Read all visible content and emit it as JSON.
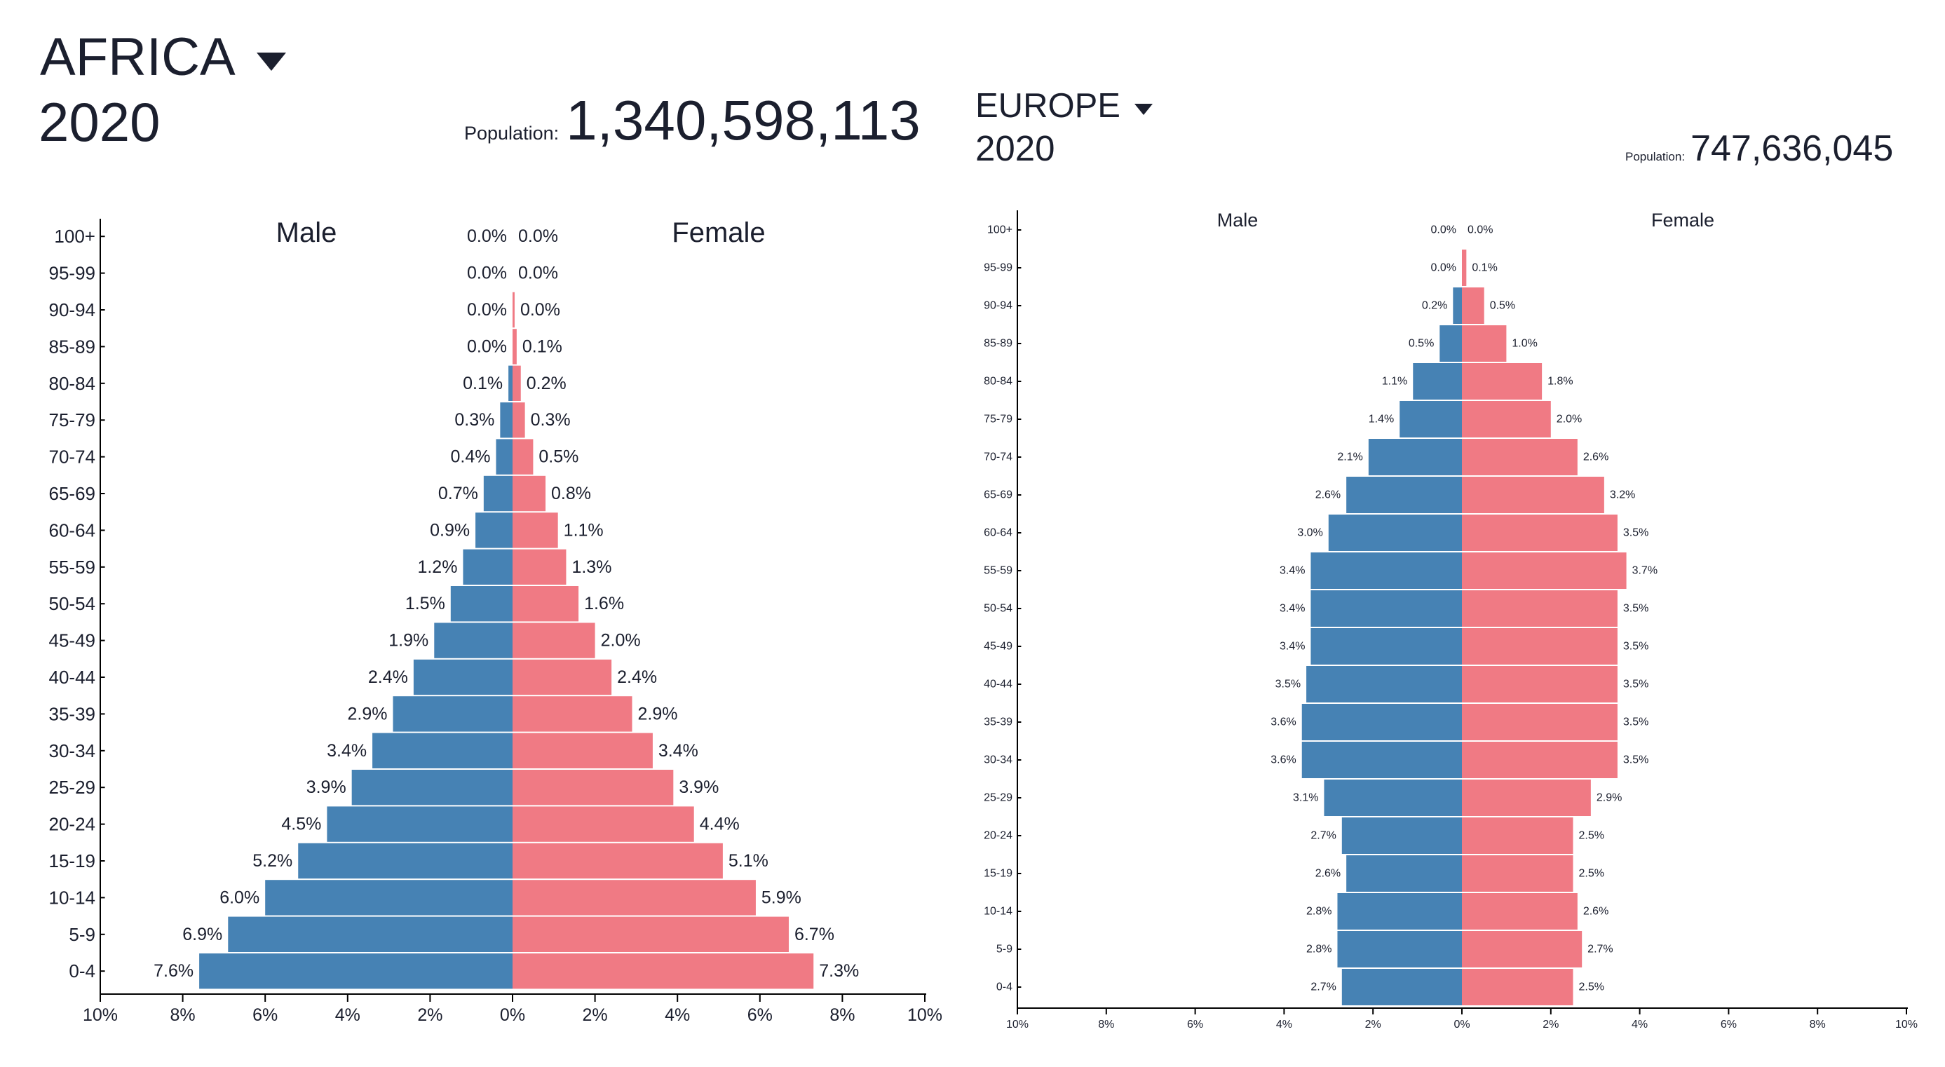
{
  "colors": {
    "male": "#4682b4",
    "female": "#f07a84",
    "text": "#1b1f2e",
    "axis": "#000000"
  },
  "icons": {
    "dropdown": "caret-down-icon"
  },
  "charts": [
    {
      "region": "AFRICA",
      "year": "2020",
      "population_label": "Population:",
      "population": "1,340,598,113"
    },
    {
      "region": "EUROPE",
      "year": "2020",
      "population_label": "Population:",
      "population": "747,636,045"
    }
  ],
  "chart_data": [
    {
      "type": "bar",
      "orientation": "horizontal-diverging",
      "categories": [
        "100+",
        "95-99",
        "90-94",
        "85-89",
        "80-84",
        "75-79",
        "70-74",
        "65-69",
        "60-64",
        "55-59",
        "50-54",
        "45-49",
        "40-44",
        "35-39",
        "30-34",
        "25-29",
        "20-24",
        "15-19",
        "10-14",
        "5-9",
        "0-4"
      ],
      "series": [
        {
          "name": "Male",
          "values": [
            0.0,
            0.0,
            0.0,
            0.0,
            0.1,
            0.3,
            0.4,
            0.7,
            0.9,
            1.2,
            1.5,
            1.9,
            2.4,
            2.9,
            3.4,
            3.9,
            4.5,
            5.2,
            6.0,
            6.9,
            7.6
          ],
          "labels": [
            "0.0%",
            "0.0%",
            "0.0%",
            "0.0%",
            "0.1%",
            "0.3%",
            "0.4%",
            "0.7%",
            "0.9%",
            "1.2%",
            "1.5%",
            "1.9%",
            "2.4%",
            "2.9%",
            "3.4%",
            "3.9%",
            "4.5%",
            "5.2%",
            "6.0%",
            "6.9%",
            "7.6%"
          ]
        },
        {
          "name": "Female",
          "values": [
            0.0,
            0.0,
            0.05,
            0.1,
            0.2,
            0.3,
            0.5,
            0.8,
            1.1,
            1.3,
            1.6,
            2.0,
            2.4,
            2.9,
            3.4,
            3.9,
            4.4,
            5.1,
            5.9,
            6.7,
            7.3
          ],
          "labels": [
            "0.0%",
            "0.0%",
            "0.0%",
            "0.1%",
            "0.2%",
            "0.3%",
            "0.5%",
            "0.8%",
            "1.1%",
            "1.3%",
            "1.6%",
            "2.0%",
            "2.4%",
            "2.9%",
            "3.4%",
            "3.9%",
            "4.4%",
            "5.1%",
            "5.9%",
            "6.7%",
            "7.3%"
          ]
        }
      ],
      "xlim": [
        -10,
        10
      ],
      "xticks": [
        "10%",
        "8%",
        "6%",
        "4%",
        "2%",
        "0%",
        "2%",
        "4%",
        "6%",
        "8%",
        "10%"
      ],
      "grid": false
    },
    {
      "type": "bar",
      "orientation": "horizontal-diverging",
      "categories": [
        "100+",
        "95-99",
        "90-94",
        "85-89",
        "80-84",
        "75-79",
        "70-74",
        "65-69",
        "60-64",
        "55-59",
        "50-54",
        "45-49",
        "40-44",
        "35-39",
        "30-34",
        "25-29",
        "20-24",
        "15-19",
        "10-14",
        "5-9",
        "0-4"
      ],
      "series": [
        {
          "name": "Male",
          "values": [
            0.0,
            0.0,
            0.2,
            0.5,
            1.1,
            1.4,
            2.1,
            2.6,
            3.0,
            3.4,
            3.4,
            3.4,
            3.5,
            3.6,
            3.6,
            3.1,
            2.7,
            2.6,
            2.8,
            2.8,
            2.7
          ],
          "labels": [
            "0.0%",
            "0.0%",
            "0.2%",
            "0.5%",
            "1.1%",
            "1.4%",
            "2.1%",
            "2.6%",
            "3.0%",
            "3.4%",
            "3.4%",
            "3.4%",
            "3.5%",
            "3.6%",
            "3.6%",
            "3.1%",
            "2.7%",
            "2.6%",
            "2.8%",
            "2.8%",
            "2.7%"
          ]
        },
        {
          "name": "Female",
          "values": [
            0.0,
            0.1,
            0.5,
            1.0,
            1.8,
            2.0,
            2.6,
            3.2,
            3.5,
            3.7,
            3.5,
            3.5,
            3.5,
            3.5,
            3.5,
            2.9,
            2.5,
            2.5,
            2.6,
            2.7,
            2.5
          ],
          "labels": [
            "0.0%",
            "0.1%",
            "0.5%",
            "1.0%",
            "1.8%",
            "2.0%",
            "2.6%",
            "3.2%",
            "3.5%",
            "3.7%",
            "3.5%",
            "3.5%",
            "3.5%",
            "3.5%",
            "3.5%",
            "2.9%",
            "2.5%",
            "2.5%",
            "2.6%",
            "2.7%",
            "2.5%"
          ]
        }
      ],
      "xlim": [
        -10,
        10
      ],
      "xticks": [
        "10%",
        "8%",
        "6%",
        "4%",
        "2%",
        "0%",
        "2%",
        "4%",
        "6%",
        "8%",
        "10%"
      ],
      "grid": false
    }
  ]
}
